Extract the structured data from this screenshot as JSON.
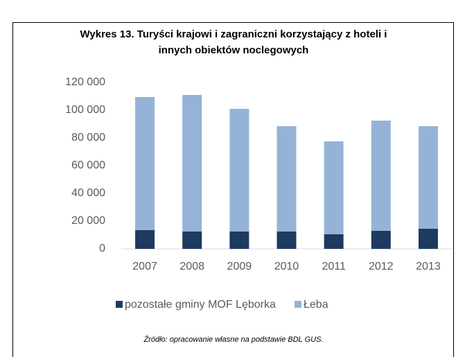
{
  "chart_data": {
    "type": "stacked_bar",
    "title": "Wykres 13. Turyści krajowi i zagraniczni korzystający z hoteli i innych obiektów noclegowych",
    "categories": [
      "2007",
      "2008",
      "2009",
      "2010",
      "2011",
      "2012",
      "2013"
    ],
    "series": [
      {
        "name": "pozostałe gminy MOF Lęborka",
        "color": "#1f3a60",
        "values": [
          13500,
          12500,
          12500,
          12500,
          10500,
          13000,
          14500
        ]
      },
      {
        "name": "Łeba",
        "color": "#95b3d7",
        "values": [
          96000,
          98500,
          88500,
          76000,
          67000,
          79500,
          74000
        ]
      }
    ],
    "ylim": [
      0,
      120000
    ],
    "yticks": [
      0,
      {
        "value": 20000,
        "label": "20 000"
      },
      {
        "value": 40000,
        "label": "40 000"
      },
      {
        "value": 60000,
        "label": "60 000"
      },
      {
        "value": 80000,
        "label": "80 000"
      },
      {
        "value": 100000,
        "label": "100 000"
      },
      {
        "value": 120000,
        "label": "120 000"
      }
    ],
    "legend": "bottom",
    "source": "Źródło: opracowanie własne na podstawie BDL GUS."
  }
}
